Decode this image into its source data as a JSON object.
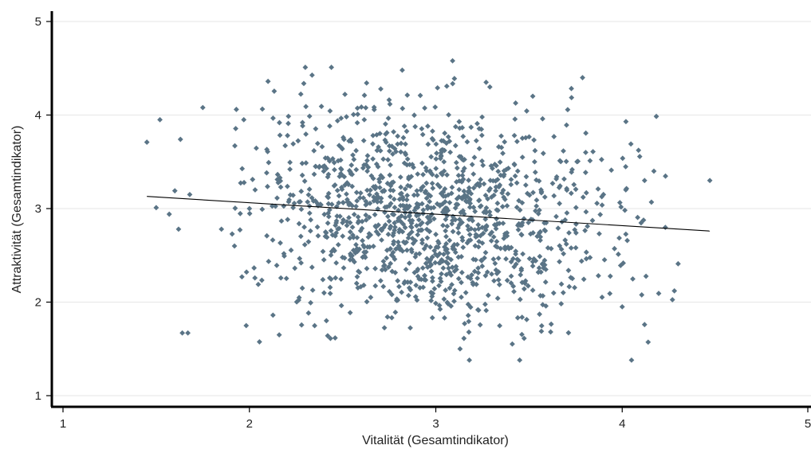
{
  "chart_data": {
    "type": "scatter",
    "xlabel": "Vitalität (Gesamtindikator)",
    "ylabel": "Attraktivität (Gesamtindikator)",
    "xlim": [
      1,
      5
    ],
    "ylim": [
      1,
      5
    ],
    "xticks": [
      1,
      2,
      3,
      4,
      5
    ],
    "yticks": [
      1,
      2,
      3,
      4,
      5
    ],
    "grid": "horizontal",
    "marker": "diamond",
    "point_color": "#5a7486",
    "fit_line_color": "#000000",
    "point_count": 1300,
    "cluster_center": [
      2.95,
      2.92
    ],
    "cluster_sd": [
      0.5,
      0.6
    ],
    "points": [
      [
        1.45,
        3.71
      ],
      [
        1.52,
        3.95
      ],
      [
        1.5,
        3.01
      ],
      [
        1.6,
        3.19
      ],
      [
        1.57,
        2.94
      ],
      [
        1.62,
        2.78
      ],
      [
        1.63,
        3.74
      ],
      [
        1.68,
        3.15
      ],
      [
        1.75,
        4.08
      ],
      [
        1.64,
        1.67
      ],
      [
        1.67,
        1.67
      ],
      [
        1.93,
        4.06
      ],
      [
        1.97,
        3.95
      ],
      [
        2.1,
        4.36
      ],
      [
        2.3,
        4.51
      ],
      [
        2.44,
        4.51
      ],
      [
        2.82,
        4.48
      ],
      [
        3.09,
        4.58
      ],
      [
        3.27,
        4.35
      ],
      [
        3.29,
        4.3
      ],
      [
        4.02,
        3.93
      ],
      [
        4.47,
        3.3
      ],
      [
        4.17,
        3.4
      ],
      [
        4.12,
        3.3
      ],
      [
        4.3,
        2.41
      ],
      [
        4.28,
        2.12
      ],
      [
        4.05,
        1.38
      ],
      [
        4.12,
        1.76
      ],
      [
        4.0,
        1.95
      ],
      [
        3.45,
        1.38
      ],
      [
        3.18,
        1.38
      ],
      [
        3.13,
        1.5
      ],
      [
        2.42,
        1.64
      ],
      [
        2.16,
        1.65
      ],
      [
        1.96,
        2.27
      ],
      [
        1.92,
        2.6
      ],
      [
        1.85,
        2.78
      ]
    ],
    "fit_line": {
      "x": [
        1.45,
        4.47
      ],
      "y": [
        3.13,
        2.76
      ]
    }
  }
}
